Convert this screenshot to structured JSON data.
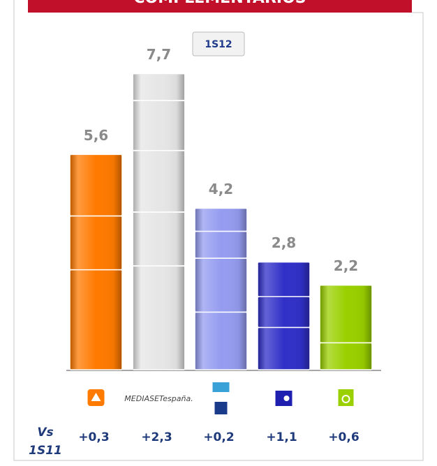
{
  "chart_data": {
    "type": "bar",
    "title": "COMPLEMENTARIOS",
    "badge": "1S12",
    "categories": [
      null,
      "MEDIASETespaña.",
      null,
      null,
      null
    ],
    "values": [
      5.6,
      7.7,
      4.2,
      2.8,
      2.2
    ],
    "value_labels": [
      "5,6",
      "7,7",
      "4,2",
      "2,8",
      "2,2"
    ],
    "segments": [
      [
        2.6,
        1.4,
        1.6
      ],
      [
        2.7,
        1.4,
        1.6,
        1.3,
        0.7
      ],
      [
        1.5,
        1.4,
        0.7,
        0.6
      ],
      [
        1.1,
        0.8,
        0.9
      ],
      [
        0.7,
        1.5
      ]
    ],
    "colors": [
      "#ff7a00",
      "#e6e6e6",
      "#959cf0",
      "#3030c8",
      "#9ad000"
    ],
    "ylim": [
      0,
      8.2
    ],
    "change_title": [
      "Vs",
      "1S11"
    ],
    "changes": [
      0.3,
      2.3,
      0.2,
      1.1,
      0.6
    ],
    "change_labels": [
      "+0,3",
      "+2,3",
      "+0,2",
      "+1,1",
      "+0,6"
    ]
  }
}
